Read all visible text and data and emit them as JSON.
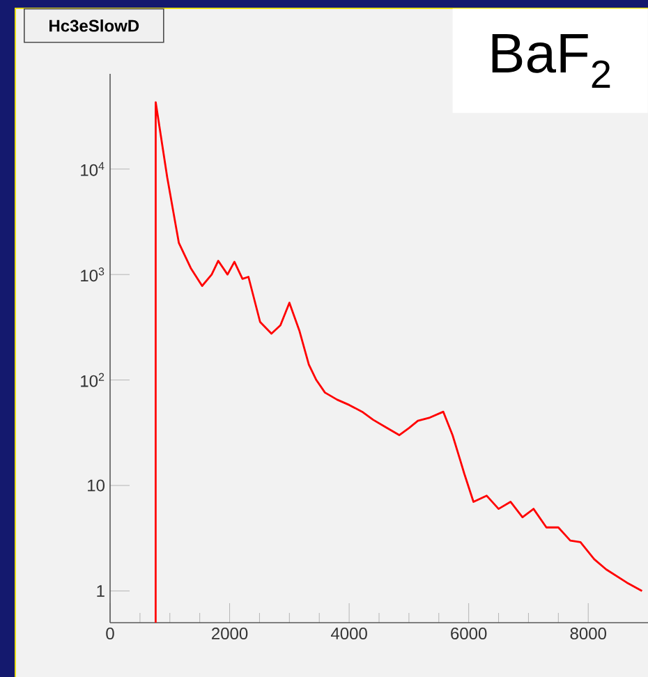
{
  "chart_data": {
    "type": "line",
    "title": "Hc3eSlowD",
    "annotations": [
      "BaF$_{2}$"
    ],
    "log": "y",
    "xlim": [
      0,
      9000
    ],
    "ylim": [
      0.5,
      80000
    ],
    "xticks": [
      0,
      2000,
      4000,
      6000,
      8000
    ],
    "yticks": [
      1,
      10,
      {
        "value": 100,
        "label": "10$^{2}$"
      },
      {
        "value": 1000,
        "label": "10$^{3}$"
      },
      {
        "value": 10000,
        "label": "10$^{4}$"
      }
    ],
    "series": [
      {
        "color": "#ff0000",
        "x": [
          762,
          763,
          955,
          1150,
          1350,
          1540,
          1700,
          1810,
          1965,
          2080,
          2215,
          2315,
          2510,
          2700,
          2850,
          3000,
          3170,
          3325,
          3450,
          3595,
          3800,
          4000,
          4217,
          4400,
          4600,
          4840,
          5000,
          5150,
          5350,
          5575,
          5730,
          5850,
          5925,
          6080,
          6300,
          6500,
          6700,
          6900,
          7085,
          7300,
          7500,
          7700,
          7870,
          8100,
          8300,
          8645,
          8900
        ],
        "values": [
          0.5,
          43000,
          8400,
          2000,
          1150,
          780,
          1000,
          1350,
          1000,
          1320,
          910,
          950,
          355,
          275,
          330,
          540,
          290,
          140,
          100,
          76,
          65,
          58,
          50,
          42,
          36,
          30,
          35,
          41,
          44,
          50,
          30,
          18,
          13,
          7,
          8,
          6,
          7,
          5,
          6,
          4,
          4,
          3,
          2.9,
          2,
          1.6,
          1.2,
          1
        ]
      }
    ]
  }
}
